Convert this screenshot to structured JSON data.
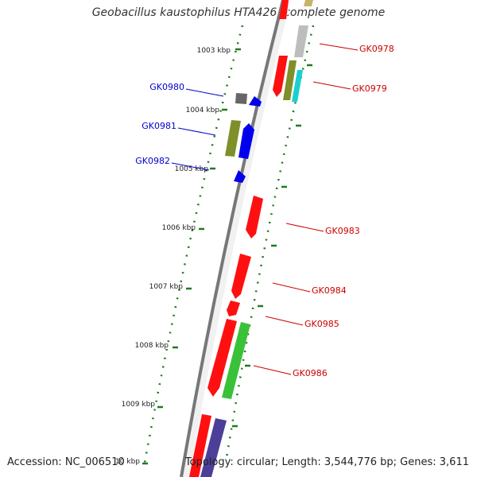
{
  "title": "Geobacillus kaustophilus HTA426, complete genome",
  "footer": {
    "accession": "Accession: NC_006510",
    "summary": "Topology: circular; Length: 3,544,776 bp; Genes: 3,611"
  },
  "ticks": [
    {
      "label": "1003 kbp"
    },
    {
      "label": "1004 kbp"
    },
    {
      "label": "1005 kbp"
    },
    {
      "label": "1006 kbp"
    },
    {
      "label": "1007 kbp"
    },
    {
      "label": "1008 kbp"
    },
    {
      "label": "1009 kbp"
    },
    {
      "label": "10 kbp"
    }
  ],
  "genes_plus": [
    {
      "label": "GK0978",
      "color": "#cc0000"
    },
    {
      "label": "GK0979",
      "color": "#cc0000"
    },
    {
      "label": "GK0983",
      "color": "#cc0000"
    },
    {
      "label": "GK0984",
      "color": "#cc0000"
    },
    {
      "label": "GK0985",
      "color": "#cc0000"
    },
    {
      "label": "GK0986",
      "color": "#cc0000"
    }
  ],
  "genes_minus": [
    {
      "label": "GK0980",
      "color": "#0000cc"
    },
    {
      "label": "GK0981",
      "color": "#0000cc"
    },
    {
      "label": "GK0982",
      "color": "#0000cc"
    }
  ],
  "colors": {
    "backbone": "#8a8a8a",
    "red": "#ff1010",
    "blue": "#0000ee",
    "olive": "#7f8f2a",
    "green": "#39c239",
    "cyan": "#19d0d0",
    "gray": "#bdbdbd",
    "dark_gray": "#666666",
    "tan": "#c9b36b",
    "purple": "#4b3f9a",
    "tick": "#1f7a1f"
  }
}
